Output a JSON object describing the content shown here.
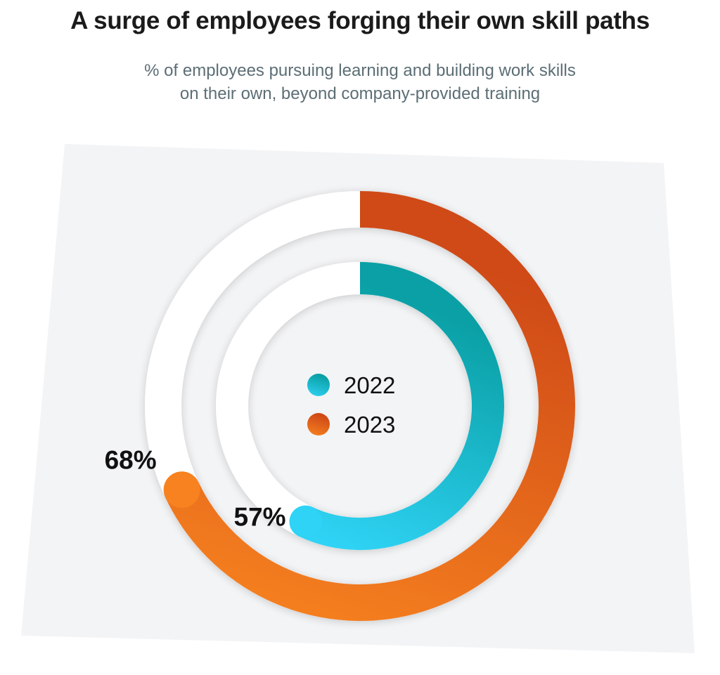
{
  "chart_data": {
    "type": "radial-bar",
    "title": "A surge of employees forging their own skill paths",
    "subtitle_lines": [
      "% of employees pursuing learning and building work skills",
      "on their own, beyond company-provided training"
    ],
    "unit": "%",
    "max": 100,
    "series": [
      {
        "name": "2022",
        "value": 57,
        "label": "57%",
        "color_start": "#2fd3f5",
        "color_end": "#0aa0a5"
      },
      {
        "name": "2023",
        "value": 68,
        "label": "68%",
        "color_start": "#f7821f",
        "color_end": "#cf4a17"
      }
    ],
    "legend": {
      "placement": "center",
      "entries": [
        "2022",
        "2023"
      ]
    }
  },
  "colors": {
    "panel": "#f3f4f6",
    "track": "#ffffff",
    "title": "#1b1b1b",
    "subtitle": "#5c6e75"
  }
}
